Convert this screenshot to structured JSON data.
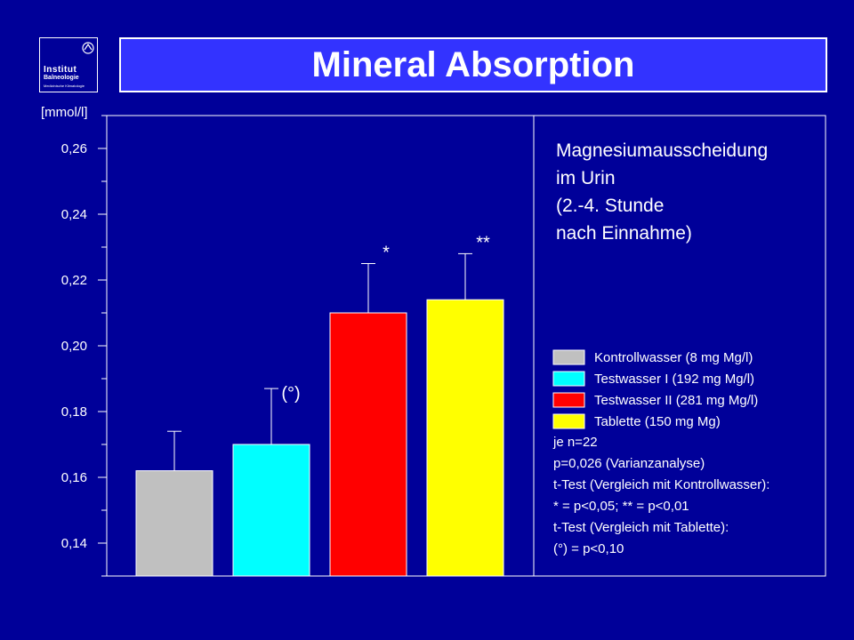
{
  "slide": {
    "title": "Mineral Absorption",
    "logo": {
      "line1": "Institut",
      "line2": "Balneologie",
      "line3": "Medizinische Klimatologie"
    }
  },
  "colors": {
    "background": "#000099",
    "title_box": "#3333ff",
    "text": "#ffffff"
  },
  "chart_data": {
    "type": "bar",
    "ylabel": "[mmol/l]",
    "ylim": [
      0.13,
      0.27
    ],
    "yticks": [
      0.14,
      0.16,
      0.18,
      0.2,
      0.22,
      0.24,
      0.26
    ],
    "ytick_labels": [
      "0,14",
      "0,16",
      "0,18",
      "0,20",
      "0,22",
      "0,24",
      "0,26"
    ],
    "categories": [
      "Kontrollwasser (8 mg Mg/l)",
      "Testwasser I (192 mg Mg/l)",
      "Testwasser II (281 mg Mg/l)",
      "Tablette (150 mg Mg)"
    ],
    "values": [
      0.162,
      0.17,
      0.21,
      0.214
    ],
    "error_upper": [
      0.174,
      0.187,
      0.225,
      0.228
    ],
    "bar_colors": [
      "#c0c0c0",
      "#00ffff",
      "#ff0000",
      "#ffff00"
    ],
    "annotations": [
      "",
      "(°)",
      "*",
      "**"
    ],
    "info_lines": [
      "Magnesiumausscheidung",
      "im Urin",
      "(2.-4. Stunde",
      "nach Einnahme)"
    ],
    "legend_placement": "right",
    "notes": [
      "je n=22",
      "p=0,026 (Varianzanalyse)",
      "t-Test (Vergleich mit Kontrollwasser):",
      "* = p<0,05; ** = p<0,01",
      "t-Test (Vergleich mit Tablette):",
      "(°) = p<0,10"
    ],
    "grid": false
  }
}
